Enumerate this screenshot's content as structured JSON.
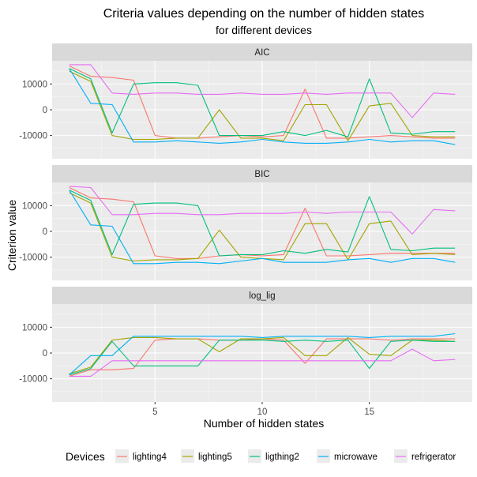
{
  "chart_data": {
    "type": "line",
    "title": "Criteria values depending on the number of hidden states",
    "subtitle": "for different devices",
    "xlabel": "Number of hidden states",
    "ylabel": "Criterion value",
    "xlim": [
      0.2,
      19.8
    ],
    "ylim": [
      -19000,
      19000
    ],
    "x_ticks": [
      5,
      10,
      15
    ],
    "y_ticks": [
      -10000,
      0,
      10000
    ],
    "grid": true,
    "legend": {
      "title": "Devices",
      "position": "bottom"
    },
    "x": [
      1,
      2,
      3,
      4,
      5,
      6,
      7,
      8,
      9,
      10,
      11,
      12,
      13,
      14,
      15,
      16,
      17,
      18,
      19
    ],
    "panels": [
      {
        "label": "AIC",
        "series": [
          {
            "name": "lighting4",
            "color": "#F8766D",
            "values": [
              17000,
              13000,
              12500,
              11500,
              -10000,
              -11000,
              -11000,
              -10500,
              -10000,
              -10500,
              -10000,
              8000,
              -11000,
              -11000,
              -10500,
              -10000,
              -10500,
              -11000,
              -11000
            ]
          },
          {
            "name": "lighting5",
            "color": "#A3A500",
            "values": [
              15000,
              11000,
              -10000,
              -11500,
              -11500,
              -11000,
              -11000,
              0,
              -11000,
              -11000,
              -12000,
              2000,
              2000,
              -12000,
              1500,
              2500,
              -10000,
              -10500,
              -10500
            ]
          },
          {
            "name": "ligthing2",
            "color": "#00BF7D",
            "values": [
              16000,
              12000,
              -9000,
              10000,
              10500,
              10500,
              9500,
              -10000,
              -10000,
              -10000,
              -8500,
              -10000,
              -8000,
              -10500,
              12000,
              -9000,
              -9500,
              -8500,
              -8500
            ]
          },
          {
            "name": "microwave",
            "color": "#00B0F6",
            "values": [
              16000,
              2500,
              2000,
              -12500,
              -12500,
              -12000,
              -12500,
              -13000,
              -12500,
              -11500,
              -12500,
              -13000,
              -13000,
              -12500,
              -11500,
              -12500,
              -12000,
              -12000,
              -13500
            ]
          },
          {
            "name": "refrigerator",
            "color": "#E76BF3",
            "values": [
              17500,
              17500,
              6500,
              6000,
              6500,
              6500,
              6000,
              6000,
              6500,
              6000,
              6000,
              6500,
              6000,
              6500,
              6500,
              6500,
              -3000,
              6500,
              6000
            ]
          }
        ]
      },
      {
        "label": "BIC",
        "series": [
          {
            "name": "lighting4",
            "color": "#F8766D",
            "values": [
              17000,
              13000,
              12500,
              11500,
              -9500,
              -10500,
              -10500,
              -9500,
              -9000,
              -9500,
              -9000,
              9000,
              -9500,
              -9500,
              -9000,
              -8500,
              -8500,
              -8500,
              -8500
            ]
          },
          {
            "name": "lighting5",
            "color": "#A3A500",
            "values": [
              15000,
              11000,
              -10000,
              -11500,
              -11000,
              -11000,
              -10500,
              500,
              -10000,
              -10500,
              -11000,
              3000,
              3000,
              -11000,
              3000,
              4000,
              -9000,
              -8500,
              -9000
            ]
          },
          {
            "name": "ligthing2",
            "color": "#00BF7D",
            "values": [
              16000,
              12000,
              -9000,
              10500,
              11000,
              11000,
              10000,
              -9500,
              -9000,
              -9000,
              -7500,
              -8500,
              -7000,
              -8000,
              13500,
              -7000,
              -7500,
              -6500,
              -6500
            ]
          },
          {
            "name": "microwave",
            "color": "#00B0F6",
            "values": [
              16000,
              2500,
              2000,
              -12500,
              -12500,
              -12000,
              -12000,
              -12500,
              -11500,
              -10500,
              -12000,
              -12000,
              -12000,
              -11000,
              -10500,
              -12000,
              -10500,
              -10500,
              -12000
            ]
          },
          {
            "name": "refrigerator",
            "color": "#E76BF3",
            "values": [
              17500,
              17000,
              6500,
              6500,
              7000,
              7000,
              6500,
              6500,
              7000,
              7000,
              7000,
              7500,
              7000,
              7500,
              7500,
              7500,
              -1000,
              8500,
              8000
            ]
          }
        ]
      },
      {
        "label": "log_lig",
        "series": [
          {
            "name": "lighting4",
            "color": "#F8766D",
            "values": [
              -9000,
              -6500,
              -6500,
              -6000,
              5000,
              5500,
              5500,
              5000,
              5000,
              5500,
              5000,
              -4000,
              5500,
              5500,
              5500,
              5000,
              5500,
              5500,
              5500
            ]
          },
          {
            "name": "lighting5",
            "color": "#A3A500",
            "values": [
              -8000,
              -5500,
              5000,
              6000,
              6000,
              5500,
              5500,
              500,
              5500,
              5500,
              6000,
              -1000,
              -1000,
              6000,
              -500,
              -1000,
              5000,
              5000,
              4500
            ]
          },
          {
            "name": "ligthing2",
            "color": "#00BF7D",
            "values": [
              -8500,
              -6000,
              4500,
              -5000,
              -5000,
              -5000,
              -5000,
              5000,
              5000,
              5000,
              4500,
              5000,
              4500,
              5000,
              -6000,
              4500,
              5000,
              4500,
              4500
            ]
          },
          {
            "name": "microwave",
            "color": "#00B0F6",
            "values": [
              -8500,
              -1000,
              -1000,
              6500,
              6500,
              6500,
              6500,
              6500,
              6500,
              6000,
              6500,
              6500,
              6500,
              6500,
              6000,
              6500,
              6500,
              6500,
              7500
            ]
          },
          {
            "name": "refrigerator",
            "color": "#E76BF3",
            "values": [
              -9000,
              -9000,
              -3000,
              -3000,
              -3000,
              -3000,
              -3000,
              -3000,
              -3000,
              -3000,
              -3000,
              -3000,
              -3000,
              -3000,
              -3000,
              -3000,
              1500,
              -3000,
              -2500
            ]
          }
        ]
      }
    ]
  }
}
